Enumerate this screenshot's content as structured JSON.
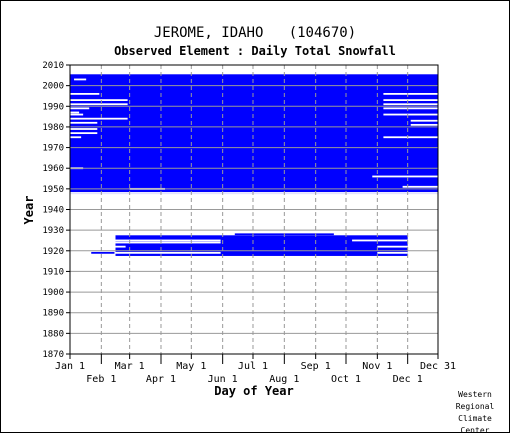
{
  "chart_data": {
    "type": "heatmap",
    "title": "JEROME, IDAHO   (104670)",
    "subtitle": "Observed Element : Daily Total Snowfall",
    "xlabel": "Day of Year",
    "ylabel": "Year",
    "xlim": [
      1,
      365
    ],
    "ylim": [
      1870,
      2010
    ],
    "y_ticks": [
      1870,
      1880,
      1890,
      1900,
      1910,
      1920,
      1930,
      1940,
      1950,
      1960,
      1970,
      1980,
      1990,
      2000,
      2010
    ],
    "x_month_ticks": [
      {
        "label": "Jan 1",
        "day": 1,
        "row": "top"
      },
      {
        "label": "Feb 1",
        "day": 32,
        "row": "bottom"
      },
      {
        "label": "Mar 1",
        "day": 60,
        "row": "top"
      },
      {
        "label": "Apr 1",
        "day": 91,
        "row": "bottom"
      },
      {
        "label": "May 1",
        "day": 121,
        "row": "top"
      },
      {
        "label": "Jun 1",
        "day": 152,
        "row": "bottom"
      },
      {
        "label": "Jul 1",
        "day": 182,
        "row": "top"
      },
      {
        "label": "Aug 1",
        "day": 213,
        "row": "bottom"
      },
      {
        "label": "Sep 1",
        "day": 244,
        "row": "top"
      },
      {
        "label": "Oct 1",
        "day": 274,
        "row": "bottom"
      },
      {
        "label": "Nov 1",
        "day": 305,
        "row": "top"
      },
      {
        "label": "Dec 1",
        "day": 335,
        "row": "bottom"
      },
      {
        "label": "Dec 31",
        "day": 365,
        "row": "top"
      }
    ],
    "grid": true,
    "color": "#0000ff",
    "grid_color": "#999999",
    "data_blocks": [
      {
        "year_start": 1948,
        "year_end": 2005,
        "day_start": 1,
        "day_end": 365
      },
      {
        "year_start": 1918,
        "year_end": 1927,
        "day_start": 46,
        "day_end": 335
      }
    ],
    "gap_lines": [
      {
        "year": 2003,
        "day_start": 5,
        "day_end": 17
      },
      {
        "year": 1996,
        "day_start": 1,
        "day_end": 30
      },
      {
        "year": 1993,
        "day_start": 1,
        "day_end": 58
      },
      {
        "year": 1991,
        "day_start": 1,
        "day_end": 58
      },
      {
        "year": 1989,
        "day_start": 1,
        "day_end": 20
      },
      {
        "year": 1987,
        "day_start": 1,
        "day_end": 10
      },
      {
        "year": 1986,
        "day_start": 1,
        "day_end": 14
      },
      {
        "year": 1984,
        "day_start": 1,
        "day_end": 58
      },
      {
        "year": 1982,
        "day_start": 1,
        "day_end": 28
      },
      {
        "year": 1979,
        "day_start": 1,
        "day_end": 28
      },
      {
        "year": 1977,
        "day_start": 1,
        "day_end": 28
      },
      {
        "year": 1975,
        "day_start": 1,
        "day_end": 12
      },
      {
        "year": 1960,
        "day_start": 1,
        "day_end": 14
      },
      {
        "year": 1950,
        "day_start": 60,
        "day_end": 95
      },
      {
        "year": 1948,
        "day_start": 1,
        "day_end": 365
      },
      {
        "year": 1996,
        "day_start": 311,
        "day_end": 365
      },
      {
        "year": 1993,
        "day_start": 311,
        "day_end": 365
      },
      {
        "year": 1991,
        "day_start": 311,
        "day_end": 365
      },
      {
        "year": 1989,
        "day_start": 311,
        "day_end": 365
      },
      {
        "year": 1986,
        "day_start": 311,
        "day_end": 365
      },
      {
        "year": 1983,
        "day_start": 338,
        "day_end": 365
      },
      {
        "year": 1981,
        "day_start": 338,
        "day_end": 365
      },
      {
        "year": 1975,
        "day_start": 311,
        "day_end": 365
      },
      {
        "year": 1956,
        "day_start": 300,
        "day_end": 365
      },
      {
        "year": 1951,
        "day_start": 330,
        "day_end": 365
      },
      {
        "year": 1925,
        "day_start": 46,
        "day_end": 150
      },
      {
        "year": 1924,
        "day_start": 46,
        "day_end": 150
      },
      {
        "year": 1922,
        "day_start": 46,
        "day_end": 56
      },
      {
        "year": 1919,
        "day_start": 46,
        "day_end": 150
      },
      {
        "year": 1919,
        "day_start": 305,
        "day_end": 335
      },
      {
        "year": 1922,
        "day_start": 305,
        "day_end": 335
      },
      {
        "year": 1925,
        "day_start": 280,
        "day_end": 335
      }
    ],
    "extra_lines": [
      {
        "year": 1919,
        "day_start": 22,
        "day_end": 45
      },
      {
        "year": 1928,
        "day_start": 164,
        "day_end": 262
      },
      {
        "year": 2004,
        "day_start": 5,
        "day_end": 19
      }
    ]
  },
  "credit": [
    "Western",
    "Regional",
    "Climate",
    "Center"
  ]
}
